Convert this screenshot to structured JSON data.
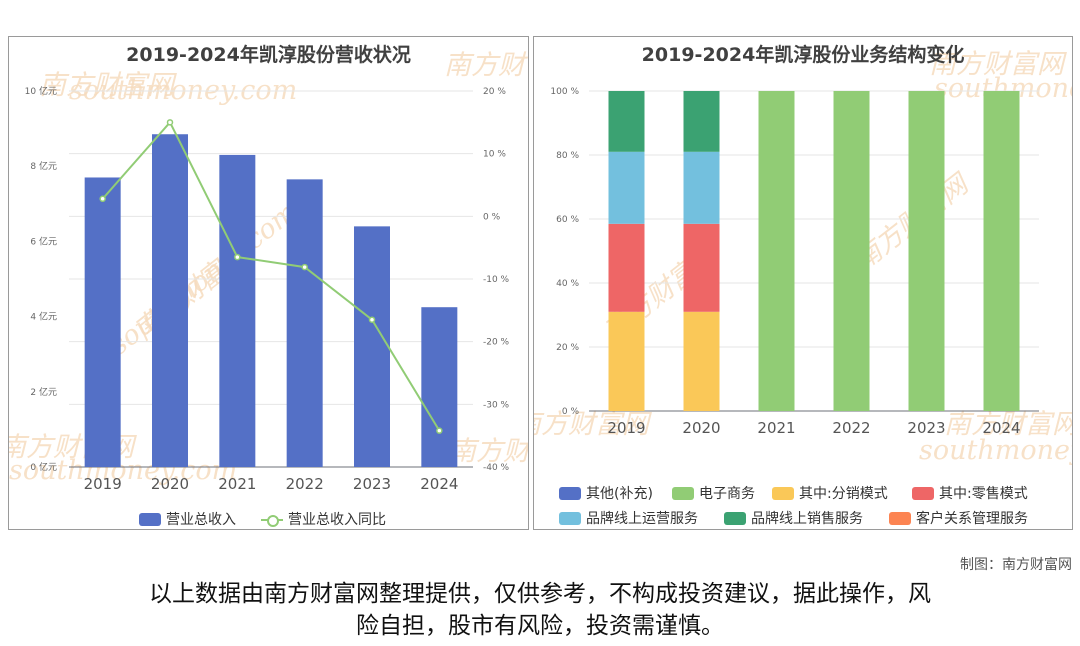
{
  "left_chart": {
    "title": "2019-2024年凯淳股份营收状况",
    "legend": [
      "营业总收入",
      "营业总收入同比"
    ]
  },
  "right_chart": {
    "title": "2019-2024年凯淳股份业务结构变化",
    "legend": [
      "其他(补充)",
      "电子商务",
      "其中:分销模式",
      "其中:零售模式",
      "品牌线上运营服务",
      "品牌线上销售服务",
      "客户关系管理服务"
    ]
  },
  "watermark": {
    "cn": "南方财富网",
    "en": "southmoney.com"
  },
  "footer": {
    "credit": "制图：南方财富网",
    "disclaimer_line1": "以上数据由南方财富网整理提供，仅供参考，不构成投资建议，据此操作，风",
    "disclaimer_line2": "险自担，股市有风险，投资需谨慎。"
  },
  "colors": {
    "revenue_bar": "#5470c6",
    "yoy_line": "#91cc75",
    "其他(补充)": "#5470c6",
    "电子商务": "#91cc75",
    "其中:分销模式": "#fac858",
    "其中:零售模式": "#ee6666",
    "品牌线上运营服务": "#73c0de",
    "品牌线上销售服务": "#3ba272",
    "客户关系管理服务": "#fc8452"
  },
  "chart_data": [
    {
      "type": "bar",
      "title": "2019-2024年凯淳股份营收状况",
      "categories": [
        "2019",
        "2020",
        "2021",
        "2022",
        "2023",
        "2024"
      ],
      "ylim": [
        0,
        10
      ],
      "y_ticks": [
        "0 亿元",
        "2 亿元",
        "4 亿元",
        "6 亿元",
        "8 亿元",
        "10 亿元"
      ],
      "y2lim": [
        -40,
        20
      ],
      "y2_ticks": [
        "-40 %",
        "-30 %",
        "-20 %",
        "-10 %",
        "0 %",
        "10 %",
        "20 %"
      ],
      "series": [
        {
          "name": "营业总收入",
          "type": "bar",
          "axis": "left",
          "values": [
            7.7,
            8.85,
            8.3,
            7.65,
            6.4,
            4.25
          ]
        },
        {
          "name": "营业总收入同比",
          "type": "line",
          "axis": "right",
          "values": [
            2.8,
            15.0,
            -6.5,
            -8.1,
            -16.5,
            -34.2
          ]
        }
      ],
      "legend_position": "bottom",
      "grid": true
    },
    {
      "type": "bar",
      "stacked": true,
      "title": "2019-2024年凯淳股份业务结构变化",
      "categories": [
        "2019",
        "2020",
        "2021",
        "2022",
        "2023",
        "2024"
      ],
      "ylim": [
        0,
        100
      ],
      "y_ticks": [
        "0 %",
        "20 %",
        "40 %",
        "60 %",
        "80 %",
        "100 %"
      ],
      "series": [
        {
          "name": "其中:分销模式",
          "values": [
            31,
            31,
            0,
            0,
            0,
            0
          ]
        },
        {
          "name": "其中:零售模式",
          "values": [
            27.5,
            27.5,
            0,
            0,
            0,
            0
          ]
        },
        {
          "name": "品牌线上运营服务",
          "values": [
            22.5,
            22.5,
            0,
            0,
            0,
            0
          ]
        },
        {
          "name": "品牌线上销售服务",
          "values": [
            19,
            19,
            0,
            0,
            0,
            0
          ]
        },
        {
          "name": "电子商务",
          "values": [
            0,
            0,
            100,
            100,
            100,
            100
          ]
        }
      ],
      "legend_position": "bottom",
      "grid": true
    }
  ]
}
